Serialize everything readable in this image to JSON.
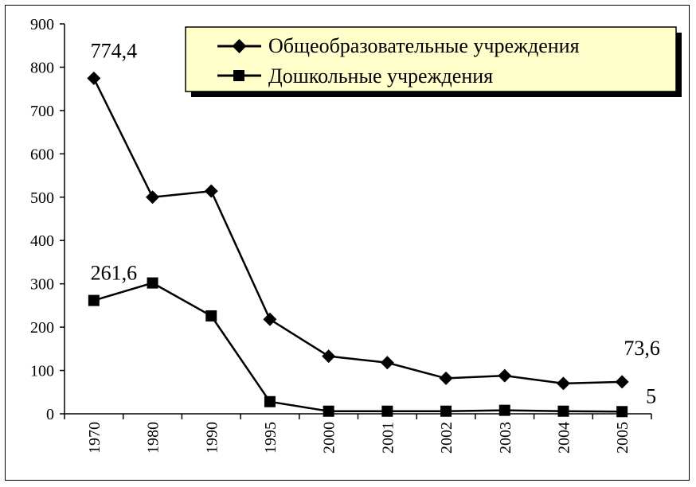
{
  "chart_data": {
    "type": "line",
    "categories": [
      "1970",
      "1980",
      "1990",
      "1995",
      "2000",
      "2001",
      "2002",
      "2003",
      "2004",
      "2005"
    ],
    "series": [
      {
        "name": "Общеобразовательные учреждения",
        "marker": "diamond",
        "values": [
          774.4,
          500,
          514,
          218,
          133,
          118,
          82,
          88,
          70,
          73.6
        ]
      },
      {
        "name": "Дошкольные учреждения",
        "marker": "square",
        "values": [
          261.6,
          302,
          226,
          28,
          6,
          6,
          6,
          8,
          6,
          5
        ]
      }
    ],
    "data_labels": [
      {
        "series": 0,
        "index": 0,
        "text": "774,4"
      },
      {
        "series": 1,
        "index": 0,
        "text": "261,6"
      },
      {
        "series": 0,
        "index": 9,
        "text": "73,6"
      },
      {
        "series": 1,
        "index": 9,
        "text": "5"
      }
    ],
    "ylim": [
      0,
      900
    ],
    "yticks": [
      "0",
      "100",
      "200",
      "300",
      "400",
      "500",
      "600",
      "700",
      "800",
      "900"
    ],
    "legend_position": "top-right",
    "legend_background": "#ffffcc",
    "line_color": "#000000",
    "grid": false
  }
}
